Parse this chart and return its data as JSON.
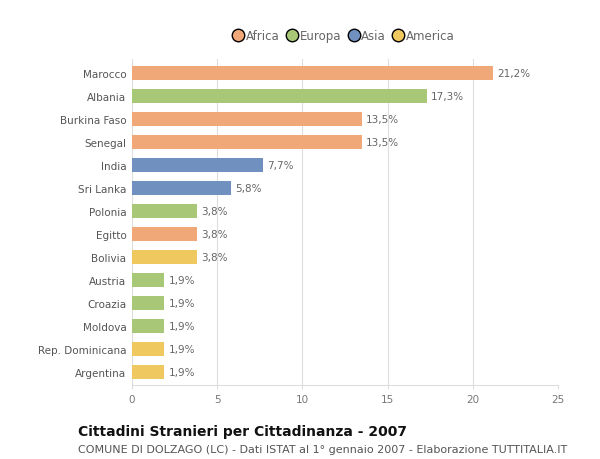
{
  "countries": [
    "Marocco",
    "Albania",
    "Burkina Faso",
    "Senegal",
    "India",
    "Sri Lanka",
    "Polonia",
    "Egitto",
    "Bolivia",
    "Austria",
    "Croazia",
    "Moldova",
    "Rep. Dominicana",
    "Argentina"
  ],
  "values": [
    21.2,
    17.3,
    13.5,
    13.5,
    7.7,
    5.8,
    3.8,
    3.8,
    3.8,
    1.9,
    1.9,
    1.9,
    1.9,
    1.9
  ],
  "labels": [
    "21,2%",
    "17,3%",
    "13,5%",
    "13,5%",
    "7,7%",
    "5,8%",
    "3,8%",
    "3,8%",
    "3,8%",
    "1,9%",
    "1,9%",
    "1,9%",
    "1,9%",
    "1,9%"
  ],
  "continents": [
    "Africa",
    "Europa",
    "Africa",
    "Africa",
    "Asia",
    "Asia",
    "Europa",
    "Africa",
    "America",
    "Europa",
    "Europa",
    "Europa",
    "America",
    "America"
  ],
  "colors": {
    "Africa": "#F0A878",
    "Europa": "#A8C878",
    "Asia": "#7090C0",
    "America": "#F0C860"
  },
  "legend_order": [
    "Africa",
    "Europa",
    "Asia",
    "America"
  ],
  "xlim": [
    0,
    25
  ],
  "xticks": [
    0,
    5,
    10,
    15,
    20,
    25
  ],
  "title": "Cittadini Stranieri per Cittadinanza - 2007",
  "subtitle": "COMUNE DI DOLZAGO (LC) - Dati ISTAT al 1° gennaio 2007 - Elaborazione TUTTITALIA.IT",
  "background_color": "#ffffff",
  "grid_color": "#dddddd",
  "bar_height": 0.6,
  "title_fontsize": 10,
  "subtitle_fontsize": 8,
  "label_fontsize": 7.5,
  "tick_fontsize": 7.5,
  "legend_fontsize": 8.5
}
